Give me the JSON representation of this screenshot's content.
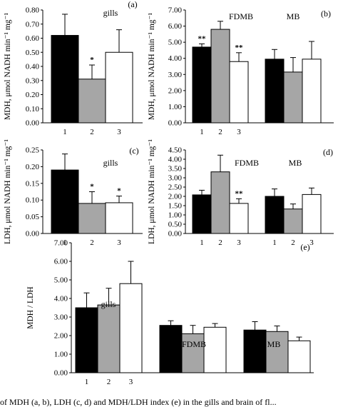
{
  "chart_data": [
    {
      "type": "bar",
      "panel": "(a)",
      "groups": [
        {
          "label": "gills",
          "categories": [
            "1",
            "2",
            "3"
          ],
          "values": [
            0.62,
            0.31,
            0.5
          ],
          "errors": [
            0.15,
            0.1,
            0.16
          ],
          "significance": [
            "",
            "*",
            ""
          ]
        }
      ],
      "ylabel": "MDH, μmol NADH min⁻¹ mg⁻¹",
      "yticks": [
        "0.00",
        "0.10",
        "0.20",
        "0.30",
        "0.40",
        "0.50",
        "0.60",
        "0.70",
        "0.80"
      ],
      "ylim": [
        0,
        0.8
      ],
      "bar_colors": [
        "#000000",
        "#a6a6a6",
        "#ffffff"
      ]
    },
    {
      "type": "bar",
      "panel": "(b)",
      "groups": [
        {
          "label": "FDMB",
          "categories": [
            "1",
            "2",
            "3"
          ],
          "values": [
            4.7,
            5.8,
            3.8
          ],
          "errors": [
            0.2,
            0.5,
            0.55
          ],
          "significance": [
            "**",
            "",
            "**"
          ]
        },
        {
          "label": "MB",
          "categories": [
            "",
            "",
            ""
          ],
          "values": [
            3.95,
            3.15,
            3.95
          ],
          "errors": [
            0.6,
            0.9,
            1.1
          ],
          "significance": [
            "",
            "",
            ""
          ]
        }
      ],
      "ylabel": "MDH, μmol NADH min⁻¹ mg⁻¹",
      "yticks": [
        "0.00",
        "1.00",
        "2.00",
        "3.00",
        "4.00",
        "5.00",
        "6.00",
        "7.00"
      ],
      "ylim": [
        0,
        7
      ],
      "bar_colors": [
        "#000000",
        "#a6a6a6",
        "#ffffff"
      ]
    },
    {
      "type": "bar",
      "panel": "(c)",
      "groups": [
        {
          "label": "gills",
          "categories": [
            "1",
            "2",
            "3"
          ],
          "values": [
            0.19,
            0.09,
            0.092
          ],
          "errors": [
            0.048,
            0.035,
            0.02
          ],
          "significance": [
            "",
            "*",
            "*"
          ]
        }
      ],
      "ylabel": "LDH, μmol NADH min⁻¹ mg⁻¹",
      "yticks": [
        "0.00",
        "0.05",
        "0.10",
        "0.15",
        "0.20",
        "0.25"
      ],
      "ylim": [
        0,
        0.25
      ],
      "bar_colors": [
        "#000000",
        "#a6a6a6",
        "#ffffff"
      ]
    },
    {
      "type": "bar",
      "panel": "(d)",
      "groups": [
        {
          "label": "FDMB",
          "categories": [
            "1",
            "2",
            "3"
          ],
          "values": [
            2.08,
            3.32,
            1.62
          ],
          "errors": [
            0.25,
            0.9,
            0.25
          ],
          "significance": [
            "",
            "",
            "**"
          ]
        },
        {
          "label": "MB",
          "categories": [
            "1",
            "2",
            "3"
          ],
          "values": [
            2.0,
            1.32,
            2.1
          ],
          "errors": [
            0.4,
            0.27,
            0.35
          ],
          "significance": [
            "",
            "",
            ""
          ]
        }
      ],
      "ylabel": "LDH, μmol NADH min⁻¹ mg⁻¹",
      "yticks": [
        "0.00",
        "0.50",
        "1.00",
        "1.50",
        "2.00",
        "2.50",
        "3.00",
        "3.50",
        "4.00",
        "4.50"
      ],
      "ylim": [
        0,
        4.5
      ],
      "bar_colors": [
        "#000000",
        "#a6a6a6",
        "#ffffff"
      ]
    },
    {
      "type": "bar",
      "panel": "(e)",
      "groups": [
        {
          "label": "gills",
          "categories": [
            "1",
            "2",
            "3"
          ],
          "values": [
            3.5,
            3.65,
            4.8
          ],
          "errors": [
            0.8,
            0.9,
            1.2
          ],
          "significance": [
            "",
            "",
            ""
          ]
        },
        {
          "label": "FDMB",
          "categories": [
            "",
            "",
            ""
          ],
          "values": [
            2.55,
            2.1,
            2.45
          ],
          "errors": [
            0.25,
            0.45,
            0.2
          ],
          "significance": [
            "",
            "",
            ""
          ]
        },
        {
          "label": "MB",
          "categories": [
            "",
            "",
            ""
          ],
          "values": [
            2.3,
            2.22,
            1.72
          ],
          "errors": [
            0.45,
            0.3,
            0.2
          ],
          "significance": [
            "",
            "",
            ""
          ]
        }
      ],
      "ylabel": "MDH / LDH",
      "yticks": [
        "0.00",
        "1.00",
        "2.00",
        "3.00",
        "4.00",
        "5.00",
        "6.00",
        "7.00"
      ],
      "ylim": [
        0,
        7
      ],
      "bar_colors": [
        "#000000",
        "#a6a6a6",
        "#ffffff"
      ]
    }
  ],
  "caption": "of MDH (a, b), LDH (c, d) and MDH/LDH index (e) in the gills and brain of fl..."
}
